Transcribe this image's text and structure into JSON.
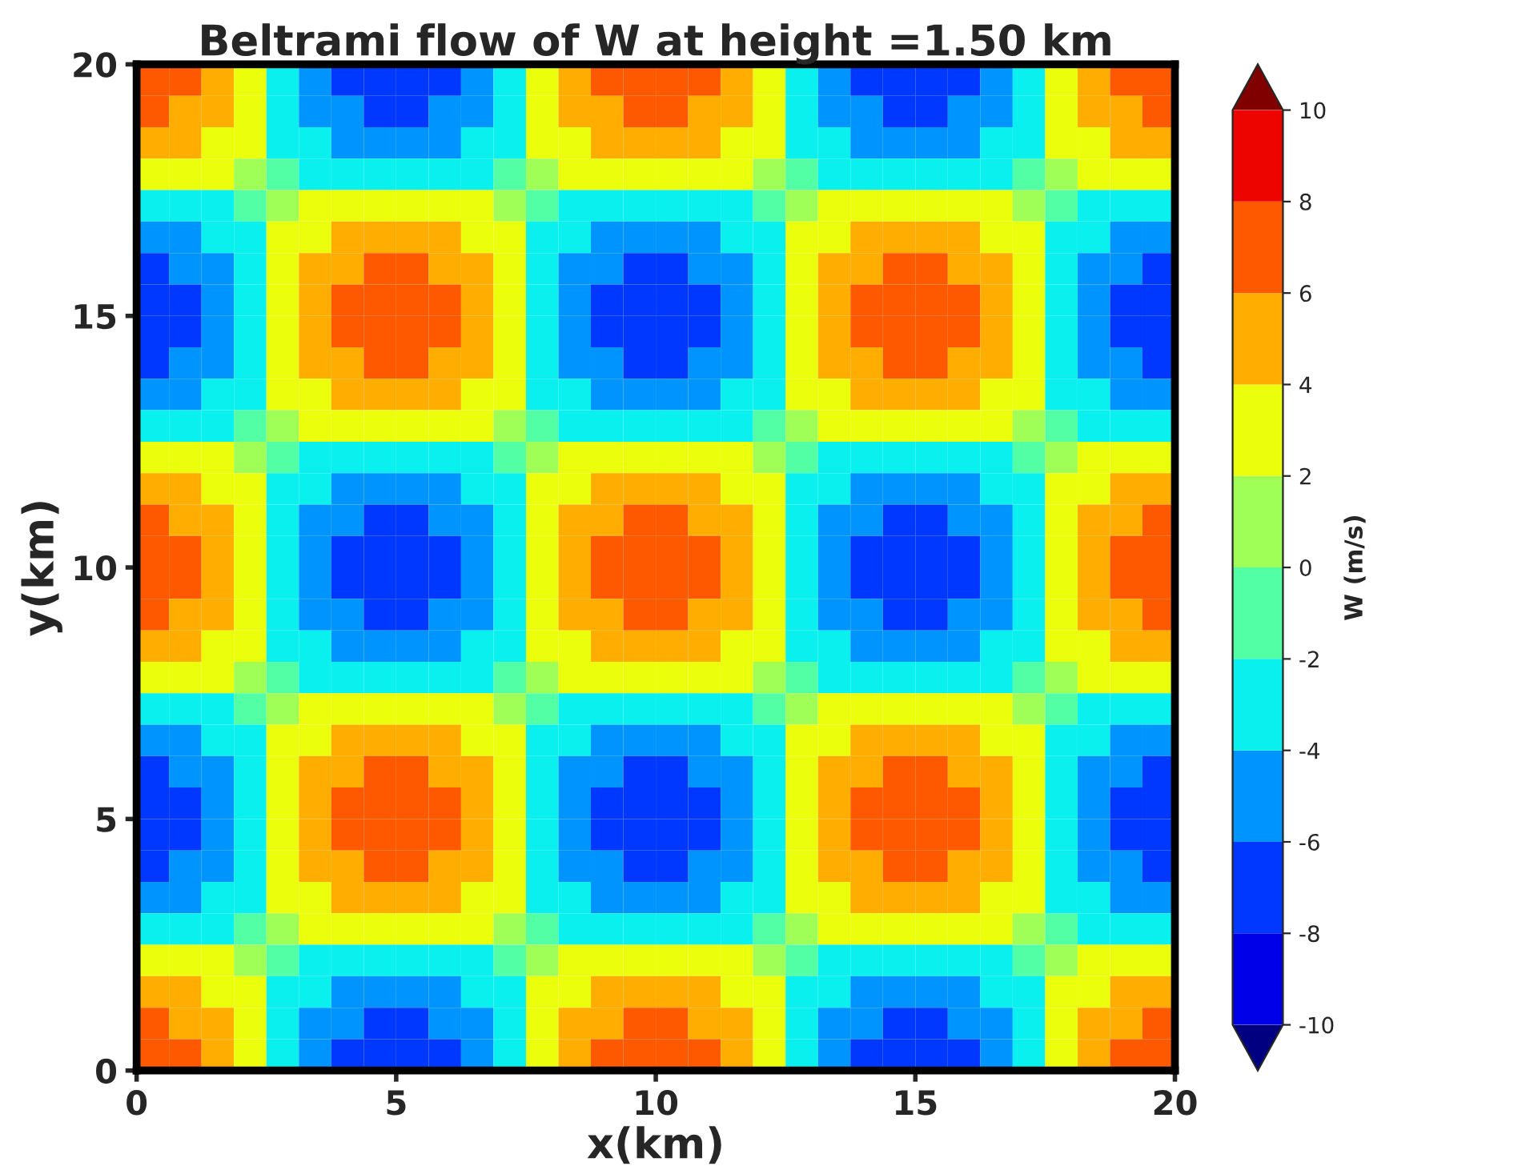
{
  "chart_data": {
    "type": "heatmap",
    "title": "Beltrami flow of W at height =1.50 km",
    "xlabel": "x(km)",
    "ylabel": "y(km)",
    "clabel": "W (m/s)",
    "xlim": [
      0,
      20
    ],
    "ylim": [
      0,
      20
    ],
    "xticks": [
      0,
      5,
      10,
      15,
      20
    ],
    "yticks": [
      0,
      5,
      10,
      15,
      20
    ],
    "clim": [
      -10,
      10
    ],
    "cticks": [
      -10,
      -8,
      -6,
      -4,
      -2,
      0,
      2,
      4,
      6,
      8,
      10
    ],
    "grid": false,
    "cells": [
      [
        7,
        7,
        5,
        3,
        -3,
        -5,
        -7,
        -7,
        -7,
        -7,
        -5,
        -3,
        3,
        5,
        7,
        7,
        7,
        7,
        5,
        3,
        -3,
        -5,
        -7,
        -7,
        -7,
        -7,
        -5,
        -3,
        3,
        5,
        7,
        7
      ],
      [
        7,
        5,
        5,
        3,
        -3,
        -5,
        -5,
        -7,
        -7,
        -5,
        -5,
        -3,
        3,
        5,
        5,
        7,
        7,
        5,
        5,
        3,
        -3,
        -5,
        -5,
        -7,
        -7,
        -5,
        -5,
        -3,
        3,
        5,
        5,
        7
      ],
      [
        5,
        5,
        3,
        3,
        -3,
        -3,
        -5,
        -5,
        -5,
        -5,
        -3,
        -3,
        3,
        3,
        5,
        5,
        5,
        5,
        3,
        3,
        -3,
        -3,
        -5,
        -5,
        -5,
        -5,
        -3,
        -3,
        3,
        3,
        5,
        5
      ],
      [
        3,
        3,
        3,
        1,
        -1,
        -3,
        -3,
        -3,
        -3,
        -3,
        -3,
        -1,
        1,
        3,
        3,
        3,
        3,
        3,
        3,
        1,
        -1,
        -3,
        -3,
        -3,
        -3,
        -3,
        -3,
        -1,
        1,
        3,
        3,
        3
      ],
      [
        -3,
        -3,
        -3,
        -1,
        1,
        3,
        3,
        3,
        3,
        3,
        3,
        1,
        -1,
        -3,
        -3,
        -3,
        -3,
        -3,
        -3,
        -1,
        1,
        3,
        3,
        3,
        3,
        3,
        3,
        1,
        -1,
        -3,
        -3,
        -3
      ],
      [
        -5,
        -5,
        -3,
        -3,
        3,
        3,
        5,
        5,
        5,
        5,
        3,
        3,
        -3,
        -3,
        -5,
        -5,
        -5,
        -5,
        -3,
        -3,
        3,
        3,
        5,
        5,
        5,
        5,
        3,
        3,
        -3,
        -3,
        -5,
        -5
      ],
      [
        -7,
        -5,
        -5,
        -3,
        3,
        5,
        5,
        7,
        7,
        5,
        5,
        3,
        -3,
        -5,
        -5,
        -7,
        -7,
        -5,
        -5,
        -3,
        3,
        5,
        5,
        7,
        7,
        5,
        5,
        3,
        -3,
        -5,
        -5,
        -7
      ],
      [
        -7,
        -7,
        -5,
        -3,
        3,
        5,
        7,
        7,
        7,
        7,
        5,
        3,
        -3,
        -5,
        -7,
        -7,
        -7,
        -7,
        -5,
        -3,
        3,
        5,
        7,
        7,
        7,
        7,
        5,
        3,
        -3,
        -5,
        -7,
        -7
      ],
      [
        -7,
        -7,
        -5,
        -3,
        3,
        5,
        7,
        7,
        7,
        7,
        5,
        3,
        -3,
        -5,
        -7,
        -7,
        -7,
        -7,
        -5,
        -3,
        3,
        5,
        7,
        7,
        7,
        7,
        5,
        3,
        -3,
        -5,
        -7,
        -7
      ],
      [
        -7,
        -5,
        -5,
        -3,
        3,
        5,
        5,
        7,
        7,
        5,
        5,
        3,
        -3,
        -5,
        -5,
        -7,
        -7,
        -5,
        -5,
        -3,
        3,
        5,
        5,
        7,
        7,
        5,
        5,
        3,
        -3,
        -5,
        -5,
        -7
      ],
      [
        -5,
        -5,
        -3,
        -3,
        3,
        3,
        5,
        5,
        5,
        5,
        3,
        3,
        -3,
        -3,
        -5,
        -5,
        -5,
        -5,
        -3,
        -3,
        3,
        3,
        5,
        5,
        5,
        5,
        3,
        3,
        -3,
        -3,
        -5,
        -5
      ],
      [
        -3,
        -3,
        -3,
        -1,
        1,
        3,
        3,
        3,
        3,
        3,
        3,
        1,
        -1,
        -3,
        -3,
        -3,
        -3,
        -3,
        -3,
        -1,
        1,
        3,
        3,
        3,
        3,
        3,
        3,
        1,
        -1,
        -3,
        -3,
        -3
      ],
      [
        3,
        3,
        3,
        1,
        -1,
        -3,
        -3,
        -3,
        -3,
        -3,
        -3,
        -1,
        1,
        3,
        3,
        3,
        3,
        3,
        3,
        1,
        -1,
        -3,
        -3,
        -3,
        -3,
        -3,
        -3,
        -1,
        1,
        3,
        3,
        3
      ],
      [
        5,
        5,
        3,
        3,
        -3,
        -3,
        -5,
        -5,
        -5,
        -5,
        -3,
        -3,
        3,
        3,
        5,
        5,
        5,
        5,
        3,
        3,
        -3,
        -3,
        -5,
        -5,
        -5,
        -5,
        -3,
        -3,
        3,
        3,
        5,
        5
      ],
      [
        7,
        5,
        5,
        3,
        -3,
        -5,
        -5,
        -7,
        -7,
        -5,
        -5,
        -3,
        3,
        5,
        5,
        7,
        7,
        5,
        5,
        3,
        -3,
        -5,
        -5,
        -7,
        -7,
        -5,
        -5,
        -3,
        3,
        5,
        5,
        7
      ],
      [
        7,
        7,
        5,
        3,
        -3,
        -5,
        -7,
        -7,
        -7,
        -7,
        -5,
        -3,
        3,
        5,
        7,
        7,
        7,
        7,
        5,
        3,
        -3,
        -5,
        -7,
        -7,
        -7,
        -7,
        -5,
        -3,
        3,
        5,
        7,
        7
      ],
      [
        7,
        7,
        5,
        3,
        -3,
        -5,
        -7,
        -7,
        -7,
        -7,
        -5,
        -3,
        3,
        5,
        7,
        7,
        7,
        7,
        5,
        3,
        -3,
        -5,
        -7,
        -7,
        -7,
        -7,
        -5,
        -3,
        3,
        5,
        7,
        7
      ],
      [
        7,
        5,
        5,
        3,
        -3,
        -5,
        -5,
        -7,
        -7,
        -5,
        -5,
        -3,
        3,
        5,
        5,
        7,
        7,
        5,
        5,
        3,
        -3,
        -5,
        -5,
        -7,
        -7,
        -5,
        -5,
        -3,
        3,
        5,
        5,
        7
      ],
      [
        5,
        5,
        3,
        3,
        -3,
        -3,
        -5,
        -5,
        -5,
        -5,
        -3,
        -3,
        3,
        3,
        5,
        5,
        5,
        5,
        3,
        3,
        -3,
        -3,
        -5,
        -5,
        -5,
        -5,
        -3,
        -3,
        3,
        3,
        5,
        5
      ],
      [
        3,
        3,
        3,
        1,
        -1,
        -3,
        -3,
        -3,
        -3,
        -3,
        -3,
        -1,
        1,
        3,
        3,
        3,
        3,
        3,
        3,
        1,
        -1,
        -3,
        -3,
        -3,
        -3,
        -3,
        -3,
        -1,
        1,
        3,
        3,
        3
      ],
      [
        -3,
        -3,
        -3,
        -1,
        1,
        3,
        3,
        3,
        3,
        3,
        3,
        1,
        -1,
        -3,
        -3,
        -3,
        -3,
        -3,
        -3,
        -1,
        1,
        3,
        3,
        3,
        3,
        3,
        3,
        1,
        -1,
        -3,
        -3,
        -3
      ],
      [
        -5,
        -5,
        -3,
        -3,
        3,
        3,
        5,
        5,
        5,
        5,
        3,
        3,
        -3,
        -3,
        -5,
        -5,
        -5,
        -5,
        -3,
        -3,
        3,
        3,
        5,
        5,
        5,
        5,
        3,
        3,
        -3,
        -3,
        -5,
        -5
      ],
      [
        -7,
        -5,
        -5,
        -3,
        3,
        5,
        5,
        7,
        7,
        5,
        5,
        3,
        -3,
        -5,
        -5,
        -7,
        -7,
        -5,
        -5,
        -3,
        3,
        5,
        5,
        7,
        7,
        5,
        5,
        3,
        -3,
        -5,
        -5,
        -7
      ],
      [
        -7,
        -7,
        -5,
        -3,
        3,
        5,
        7,
        7,
        7,
        7,
        5,
        3,
        -3,
        -5,
        -7,
        -7,
        -7,
        -7,
        -5,
        -3,
        3,
        5,
        7,
        7,
        7,
        7,
        5,
        3,
        -3,
        -5,
        -7,
        -7
      ],
      [
        -7,
        -7,
        -5,
        -3,
        3,
        5,
        7,
        7,
        7,
        7,
        5,
        3,
        -3,
        -5,
        -7,
        -7,
        -7,
        -7,
        -5,
        -3,
        3,
        5,
        7,
        7,
        7,
        7,
        5,
        3,
        -3,
        -5,
        -7,
        -7
      ],
      [
        -7,
        -5,
        -5,
        -3,
        3,
        5,
        5,
        7,
        7,
        5,
        5,
        3,
        -3,
        -5,
        -5,
        -7,
        -7,
        -5,
        -5,
        -3,
        3,
        5,
        5,
        7,
        7,
        5,
        5,
        3,
        -3,
        -5,
        -5,
        -7
      ],
      [
        -5,
        -5,
        -3,
        -3,
        3,
        3,
        5,
        5,
        5,
        5,
        3,
        3,
        -3,
        -3,
        -5,
        -5,
        -5,
        -5,
        -3,
        -3,
        3,
        3,
        5,
        5,
        5,
        5,
        3,
        3,
        -3,
        -3,
        -5,
        -5
      ],
      [
        -3,
        -3,
        -3,
        -1,
        1,
        3,
        3,
        3,
        3,
        3,
        3,
        1,
        -1,
        -3,
        -3,
        -3,
        -3,
        -3,
        -3,
        -1,
        1,
        3,
        3,
        3,
        3,
        3,
        3,
        1,
        -1,
        -3,
        -3,
        -3
      ],
      [
        3,
        3,
        3,
        1,
        -1,
        -3,
        -3,
        -3,
        -3,
        -3,
        -3,
        -1,
        1,
        3,
        3,
        3,
        3,
        3,
        3,
        1,
        -1,
        -3,
        -3,
        -3,
        -3,
        -3,
        -3,
        -1,
        1,
        3,
        3,
        3
      ],
      [
        5,
        5,
        3,
        3,
        -3,
        -3,
        -5,
        -5,
        -5,
        -5,
        -3,
        -3,
        3,
        3,
        5,
        5,
        5,
        5,
        3,
        3,
        -3,
        -3,
        -5,
        -5,
        -5,
        -5,
        -3,
        -3,
        3,
        3,
        5,
        5
      ],
      [
        7,
        5,
        5,
        3,
        -3,
        -5,
        -5,
        -7,
        -7,
        -5,
        -5,
        -3,
        3,
        5,
        5,
        7,
        7,
        5,
        5,
        3,
        -3,
        -5,
        -5,
        -7,
        -7,
        -5,
        -5,
        -3,
        3,
        5,
        5,
        7
      ],
      [
        7,
        7,
        5,
        3,
        -3,
        -5,
        -7,
        -7,
        -7,
        -7,
        -5,
        -3,
        3,
        5,
        7,
        7,
        7,
        7,
        5,
        3,
        -3,
        -5,
        -7,
        -7,
        -7,
        -7,
        -5,
        -3,
        3,
        5,
        7,
        7
      ]
    ]
  }
}
